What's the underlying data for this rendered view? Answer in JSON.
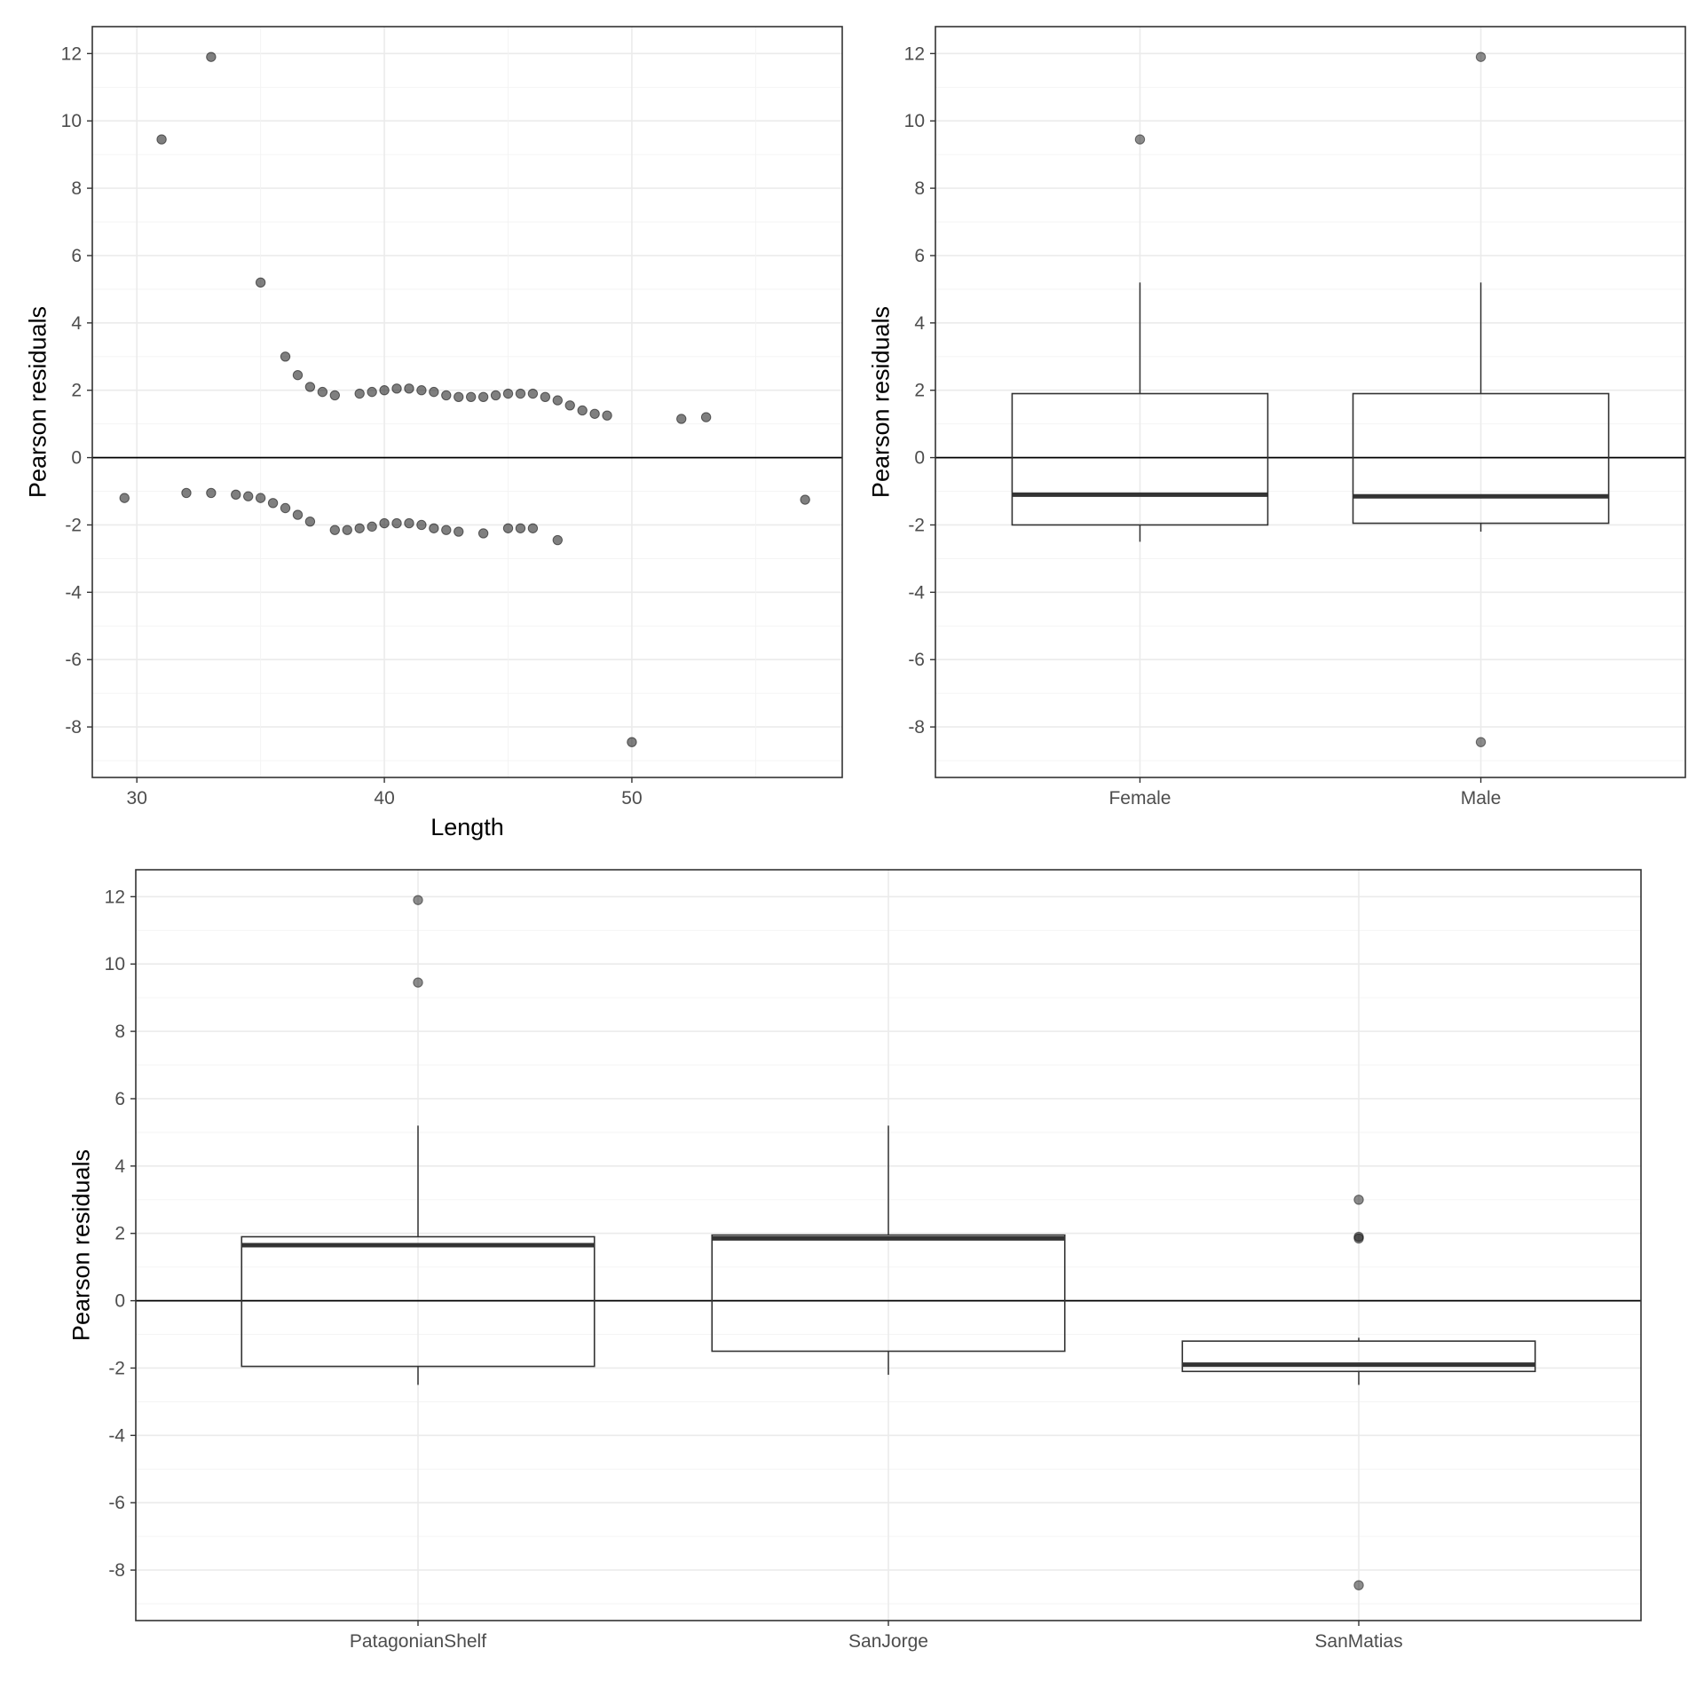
{
  "chart_data": [
    {
      "type": "scatter",
      "xlabel": "Length",
      "ylabel": "Pearson residuals",
      "xlim": [
        28.2,
        58.5
      ],
      "ylim": [
        -9.5,
        12.8
      ],
      "xticks": [
        "30",
        "40",
        "50"
      ],
      "yticks": [
        "12",
        "10",
        "8",
        "6",
        "4",
        "2",
        "0",
        "-2",
        "-4",
        "-6",
        "-8"
      ],
      "hline": 0,
      "grid": true,
      "points": [
        [
          29.5,
          -1.2
        ],
        [
          31,
          9.45
        ],
        [
          33,
          11.9
        ],
        [
          35,
          5.2
        ],
        [
          36,
          3.0
        ],
        [
          36.5,
          2.45
        ],
        [
          37,
          2.1
        ],
        [
          37.5,
          1.95
        ],
        [
          38,
          1.85
        ],
        [
          39,
          1.9
        ],
        [
          39.5,
          1.95
        ],
        [
          40,
          2.0
        ],
        [
          40.5,
          2.05
        ],
        [
          41,
          2.05
        ],
        [
          41.5,
          2.0
        ],
        [
          42,
          1.95
        ],
        [
          42.5,
          1.85
        ],
        [
          43,
          1.8
        ],
        [
          43.5,
          1.8
        ],
        [
          44,
          1.8
        ],
        [
          44.5,
          1.85
        ],
        [
          45,
          1.9
        ],
        [
          45.5,
          1.9
        ],
        [
          46,
          1.9
        ],
        [
          46.5,
          1.8
        ],
        [
          47,
          1.7
        ],
        [
          47.5,
          1.55
        ],
        [
          48,
          1.4
        ],
        [
          48.5,
          1.3
        ],
        [
          49,
          1.25
        ],
        [
          52,
          1.15
        ],
        [
          53,
          1.2
        ],
        [
          57,
          -1.25
        ],
        [
          32,
          -1.05
        ],
        [
          33,
          -1.05
        ],
        [
          34,
          -1.1
        ],
        [
          34.5,
          -1.15
        ],
        [
          35,
          -1.2
        ],
        [
          35.5,
          -1.35
        ],
        [
          36,
          -1.5
        ],
        [
          36.5,
          -1.7
        ],
        [
          37,
          -1.9
        ],
        [
          38,
          -2.15
        ],
        [
          38.5,
          -2.15
        ],
        [
          39,
          -2.1
        ],
        [
          39.5,
          -2.05
        ],
        [
          40,
          -1.95
        ],
        [
          40.5,
          -1.95
        ],
        [
          41,
          -1.95
        ],
        [
          41.5,
          -2.0
        ],
        [
          42,
          -2.1
        ],
        [
          42.5,
          -2.15
        ],
        [
          43,
          -2.2
        ],
        [
          44,
          -2.25
        ],
        [
          45,
          -2.1
        ],
        [
          45.5,
          -2.1
        ],
        [
          46,
          -2.1
        ],
        [
          47,
          -2.45
        ],
        [
          50,
          -8.45
        ]
      ]
    },
    {
      "type": "box",
      "ylabel": "Pearson residuals",
      "ylim": [
        -9.5,
        12.8
      ],
      "yticks": [
        "12",
        "10",
        "8",
        "6",
        "4",
        "2",
        "0",
        "-2",
        "-4",
        "-6",
        "-8"
      ],
      "hline": 0,
      "grid": true,
      "categories": [
        "Female",
        "Male"
      ],
      "boxes": [
        {
          "lower_whisker": -2.5,
          "q1": -2.0,
          "median": -1.1,
          "q3": 1.9,
          "upper_whisker": 5.2,
          "outliers": [
            9.45
          ]
        },
        {
          "lower_whisker": -2.2,
          "q1": -1.95,
          "median": -1.15,
          "q3": 1.9,
          "upper_whisker": 5.2,
          "outliers": [
            11.9,
            -8.45
          ]
        }
      ]
    },
    {
      "type": "box",
      "ylabel": "Pearson residuals",
      "ylim": [
        -9.5,
        12.8
      ],
      "yticks": [
        "12",
        "10",
        "8",
        "6",
        "4",
        "2",
        "0",
        "-2",
        "-4",
        "-6",
        "-8"
      ],
      "hline": 0,
      "grid": true,
      "categories": [
        "PatagonianShelf",
        "SanJorge",
        "SanMatias"
      ],
      "boxes": [
        {
          "lower_whisker": -2.5,
          "q1": -1.95,
          "median": 1.65,
          "q3": 1.9,
          "upper_whisker": 5.2,
          "outliers": [
            11.9,
            9.45
          ]
        },
        {
          "lower_whisker": -2.2,
          "q1": -1.5,
          "median": 1.85,
          "q3": 1.95,
          "upper_whisker": 5.2,
          "outliers": []
        },
        {
          "lower_whisker": -2.5,
          "q1": -2.1,
          "median": -1.9,
          "q3": -1.2,
          "upper_whisker": -1.1,
          "outliers": [
            3.0,
            1.9,
            1.85,
            -8.45
          ]
        }
      ]
    }
  ]
}
